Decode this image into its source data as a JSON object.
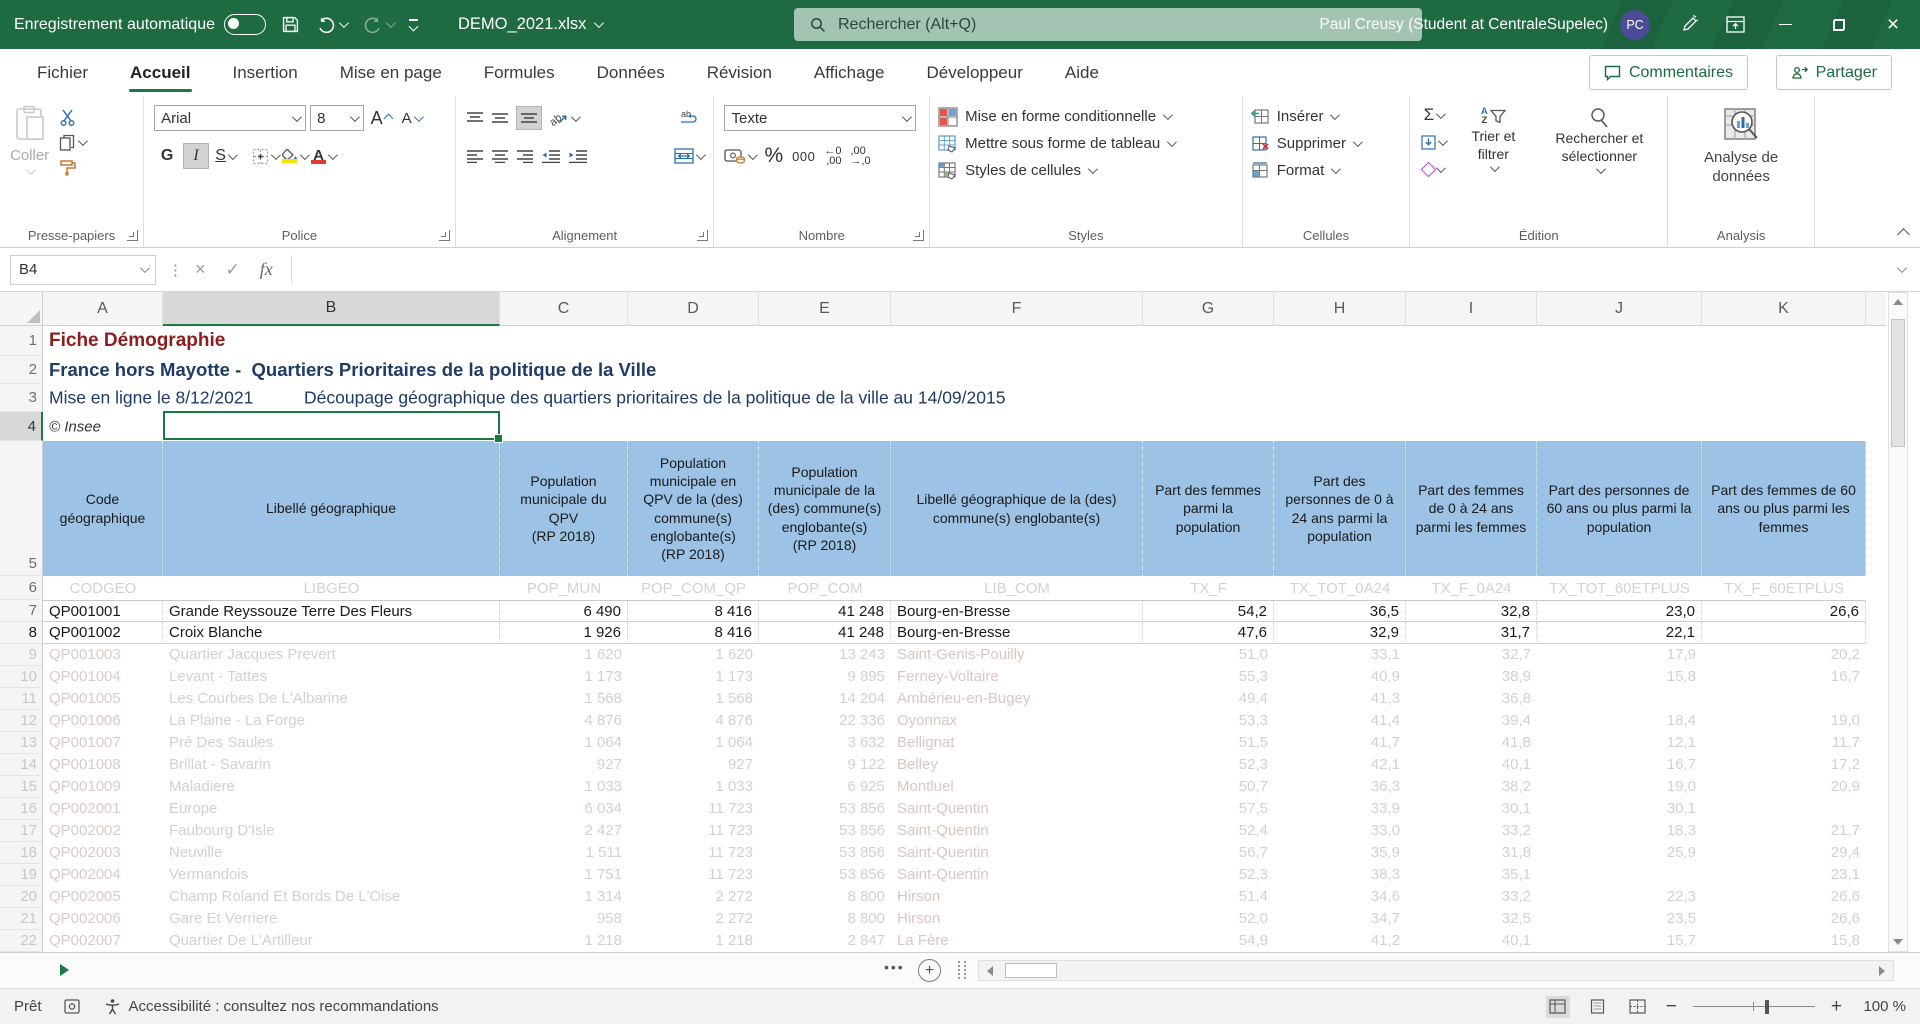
{
  "colors": {
    "titlebar_green": "#1e6b41",
    "accent_green": "#1a7a44",
    "header_blue": "#9cc2e5",
    "title_red": "#8e1d1d",
    "title_navy": "#1f3b66",
    "avatar_purple": "#4b4b97",
    "fill_yellow": "#f3e500",
    "font_red": "#e03c31"
  },
  "titlebar": {
    "autosave_label": "Enregistrement automatique",
    "autosave_state": "off",
    "filename": "DEMO_2021.xlsx",
    "search_placeholder": "Rechercher (Alt+Q)",
    "user_name": "Paul Creusy (Student at CentraleSupelec)",
    "avatar_initials": "PC"
  },
  "ribbon_tabs": {
    "items": [
      "Fichier",
      "Accueil",
      "Insertion",
      "Mise en page",
      "Formules",
      "Données",
      "Révision",
      "Affichage",
      "Développeur",
      "Aide"
    ],
    "active": "Accueil",
    "comments_label": "Commentaires",
    "share_label": "Partager"
  },
  "ribbon": {
    "paste_label": "Coller",
    "font_name": "Arial",
    "font_size": "8",
    "bold_label": "G",
    "italic_label": "I",
    "underline_label": "S",
    "number_format": "Texte",
    "percent_label": "%",
    "thousands_label": "000",
    "sum_label": "Σ",
    "styles_buttons": [
      "Mise en forme conditionnelle",
      "Mettre sous forme de tableau",
      "Styles de cellules"
    ],
    "cells_buttons": [
      "Insérer",
      "Supprimer",
      "Format"
    ],
    "sort_label": "Trier et filtrer",
    "find_label": "Rechercher et sélectionner",
    "analysis_label": "Analyse de données",
    "group_labels": [
      "Presse-papiers",
      "Police",
      "Alignement",
      "Nombre",
      "Styles",
      "Cellules",
      "Édition",
      "Analysis"
    ]
  },
  "formula_bar": {
    "name_box": "B4",
    "formula_value": "",
    "fx_label": "fx"
  },
  "sheet": {
    "columns": [
      "A",
      "B",
      "C",
      "D",
      "E",
      "F",
      "G",
      "H",
      "I",
      "J",
      "K"
    ],
    "selected_column": "B",
    "selected_cell": "B4",
    "title1": "Fiche Démographie",
    "title2": "France hors Mayotte -  Quartiers Prioritaires de la politique de la Ville",
    "title3a": "Mise en ligne le 8/12/2021",
    "title3b": "Découpage géographique des quartiers prioritaires de la politique de la ville au 14/09/2015",
    "copyright": "© Insee",
    "header_cells": [
      "Code\ngéographique",
      "Libellé géographique",
      "Population\nmunicipale du\nQPV\n(RP 2018)",
      "Population municipale en QPV de la (des) commune(s) englobante(s)\n(RP 2018)",
      "Population municipale de la (des) commune(s) englobante(s)\n(RP 2018)",
      "Libellé géographique de la (des) commune(s) englobante(s)",
      "Part des femmes parmi la population",
      "Part des personnes de 0 à 24 ans parmi la population",
      "Part des femmes de 0 à 24 ans parmi les femmes",
      "Part des personnes de 60 ans ou plus parmi la population",
      "Part des femmes de 60 ans ou plus parmi les femmes"
    ],
    "field_cells": [
      "CODGEO",
      "LIBGEO",
      "POP_MUN",
      "POP_COM_QP",
      "POP_COM",
      "LIB_COM",
      "TX_F",
      "TX_TOT_0A24",
      "TX_F_0A24",
      "TX_TOT_60ETPLUS",
      "TX_F_60ETPLUS"
    ],
    "rows": [
      {
        "num": "7",
        "faded": false,
        "cells": [
          "QP001001",
          "Grande Reyssouze Terre Des Fleurs",
          "6 490",
          "8 416",
          "41 248",
          "Bourg-en-Bresse",
          "54,2",
          "36,5",
          "32,8",
          "23,0",
          "26,6"
        ]
      },
      {
        "num": "8",
        "faded": false,
        "cells": [
          "QP001002",
          "Croix Blanche",
          "1 926",
          "8 416",
          "41 248",
          "Bourg-en-Bresse",
          "47,6",
          "32,9",
          "31,7",
          "22,1",
          ""
        ]
      },
      {
        "num": "9",
        "faded": true,
        "cells": [
          "QP001003",
          "Quartier Jacques Prevert",
          "1 620",
          "1 620",
          "13 243",
          "Saint-Genis-Pouilly",
          "51,0",
          "33,1",
          "32,7",
          "17,9",
          "20,2"
        ]
      },
      {
        "num": "10",
        "faded": true,
        "cells": [
          "QP001004",
          "Levant - Tattes",
          "1 173",
          "1 173",
          "9 895",
          "Ferney-Voltaire",
          "55,3",
          "40,9",
          "38,9",
          "15,8",
          "16,7"
        ]
      },
      {
        "num": "11",
        "faded": true,
        "cells": [
          "QP001005",
          "Les Courbes De L'Albarine",
          "1 568",
          "1 568",
          "14 204",
          "Ambérieu-en-Bugey",
          "49,4",
          "41,3",
          "36,8",
          "",
          ""
        ]
      },
      {
        "num": "12",
        "faded": true,
        "cells": [
          "QP001006",
          "La Plaine - La Forge",
          "4 876",
          "4 876",
          "22 336",
          "Oyonnax",
          "53,3",
          "41,4",
          "39,4",
          "18,4",
          "19,0"
        ]
      },
      {
        "num": "13",
        "faded": true,
        "cells": [
          "QP001007",
          "Pré Des Saules",
          "1 064",
          "1 064",
          "3 632",
          "Bellignat",
          "51,5",
          "41,7",
          "41,8",
          "12,1",
          "11,7"
        ]
      },
      {
        "num": "14",
        "faded": true,
        "cells": [
          "QP001008",
          "Brillat - Savarin",
          "927",
          "927",
          "9 122",
          "Belley",
          "52,3",
          "42,1",
          "40,1",
          "16,7",
          "17,2"
        ]
      },
      {
        "num": "15",
        "faded": true,
        "cells": [
          "QP001009",
          "Maladiere",
          "1 033",
          "1 033",
          "6 925",
          "Montluel",
          "50,7",
          "36,3",
          "38,2",
          "19,0",
          "20,9"
        ]
      },
      {
        "num": "16",
        "faded": true,
        "cells": [
          "QP002001",
          "Europe",
          "6 034",
          "11 723",
          "53 856",
          "Saint-Quentin",
          "57,5",
          "33,9",
          "30,1",
          "30,1",
          ""
        ]
      },
      {
        "num": "17",
        "faded": true,
        "cells": [
          "QP002002",
          "Faubourg D'Isle",
          "2 427",
          "11 723",
          "53 856",
          "Saint-Quentin",
          "52,4",
          "33,0",
          "33,2",
          "18,3",
          "21,7"
        ]
      },
      {
        "num": "18",
        "faded": true,
        "cells": [
          "QP002003",
          "Neuville",
          "1 511",
          "11 723",
          "53 856",
          "Saint-Quentin",
          "56,7",
          "35,9",
          "31,8",
          "25,9",
          "29,4"
        ]
      },
      {
        "num": "19",
        "faded": true,
        "cells": [
          "QP002004",
          "Vermandois",
          "1 751",
          "11 723",
          "53 856",
          "Saint-Quentin",
          "52,3",
          "38,3",
          "35,1",
          "",
          "23,1"
        ]
      },
      {
        "num": "20",
        "faded": true,
        "cells": [
          "QP002005",
          "Champ Roland Et Bords De L'Oise",
          "1 314",
          "2 272",
          "8 800",
          "Hirson",
          "51,4",
          "34,6",
          "33,2",
          "22,3",
          "26,6"
        ]
      },
      {
        "num": "21",
        "faded": true,
        "cells": [
          "QP002006",
          "Gare Et Verriere",
          "958",
          "2 272",
          "8 800",
          "Hirson",
          "52,0",
          "34,7",
          "32,5",
          "23,5",
          "26,6"
        ]
      },
      {
        "num": "22",
        "faded": true,
        "cells": [
          "QP002007",
          "Quartier De L'Artilleur",
          "1 218",
          "1 218",
          "2 847",
          "La Fère",
          "54,9",
          "41,2",
          "40,1",
          "15,7",
          "15,8"
        ]
      }
    ],
    "top_row_nums": [
      "1",
      "2",
      "3",
      "4",
      "5",
      "6"
    ]
  },
  "sheet_tabs": {
    "more_icon": "•••"
  },
  "status_bar": {
    "ready_label": "Prêt",
    "accessibility_label": "Accessibilité : consultez nos recommandations",
    "zoom_value": "100 %"
  }
}
